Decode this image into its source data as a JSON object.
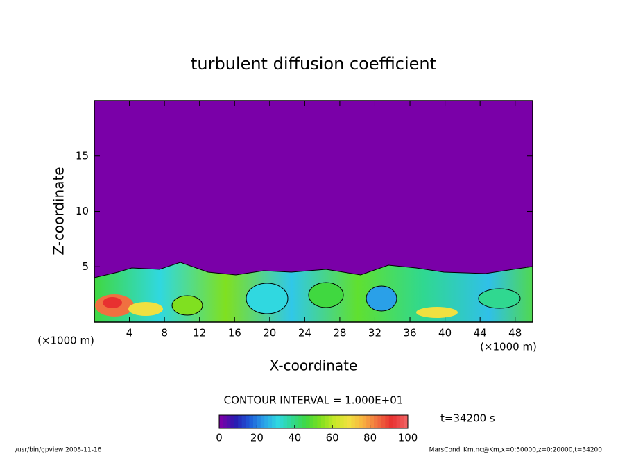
{
  "chart_data": {
    "type": "contour",
    "title": "turbulent diffusion coefficient",
    "x_label": "X-coordinate",
    "y_label": "Z-coordinate",
    "x_unit": "(×1000 m)",
    "y_unit": "(×1000 m)",
    "xlim": [
      0,
      50
    ],
    "xticks": [
      4,
      8,
      12,
      16,
      20,
      24,
      28,
      32,
      36,
      40,
      44,
      48
    ],
    "ylim": [
      0,
      20
    ],
    "yticks": [
      5,
      10,
      15
    ],
    "contour_interval": "CONTOUR INTERVAL = 1.000E+01",
    "time_label": "t=34200 s",
    "colorbar": {
      "lim": [
        0,
        100
      ],
      "ticks": [
        0,
        20,
        40,
        60,
        80,
        100
      ],
      "colors": [
        "#7a00a8",
        "#2a1ab0",
        "#1e5ad8",
        "#2aa0e8",
        "#30d8e0",
        "#30d890",
        "#40d840",
        "#80e020",
        "#c8e828",
        "#f0e040",
        "#f8b040",
        "#f07040",
        "#e83030",
        "#f06060"
      ]
    },
    "footer_left": "/usr/bin/gpview  2008-11-16",
    "footer_right": "MarsCond_Km.nc@Km,x=0:50000,z=0:20000,t=34200"
  }
}
